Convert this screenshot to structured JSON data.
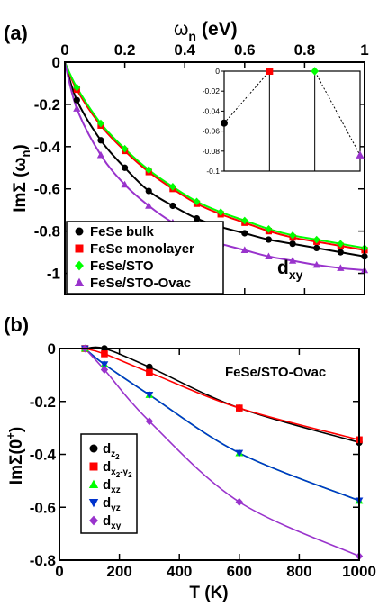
{
  "chart_data": [
    {
      "type": "line",
      "panel_label": "(a)",
      "xlabel": "ω",
      "xlabel_sub": "n",
      "xlabel_unit": "(eV)",
      "ylabel": "ImΣ (ω",
      "ylabel_sub": "n",
      "ylabel_close": ")",
      "xlim": [
        0,
        1
      ],
      "ylim": [
        -1.1,
        0
      ],
      "xticks": [
        0,
        0.2,
        0.4,
        0.6,
        0.8,
        1
      ],
      "xtick_labels": [
        "0",
        "0.2",
        "0.4",
        "0.6",
        "0.8",
        "1"
      ],
      "yticks": [
        0,
        -0.2,
        -0.4,
        -0.6,
        -0.8,
        -1
      ],
      "ytick_labels": [
        "0",
        "-0.2",
        "-0.4",
        "-0.6",
        "-0.8",
        "-1"
      ],
      "annotation": "d",
      "annotation_sub": "xy",
      "legend_position": "bottom-left",
      "series": [
        {
          "name": "FeSe bulk",
          "color": "#000000",
          "marker": "circle",
          "x": [
            0.04,
            0.12,
            0.2,
            0.28,
            0.36,
            0.44,
            0.52,
            0.6,
            0.68,
            0.76,
            0.84,
            0.92,
            1.0
          ],
          "y": [
            -0.18,
            -0.37,
            -0.5,
            -0.61,
            -0.68,
            -0.74,
            -0.78,
            -0.81,
            -0.84,
            -0.86,
            -0.88,
            -0.9,
            -0.92
          ]
        },
        {
          "name": "FeSe monolayer",
          "color": "#ff0000",
          "marker": "square",
          "x": [
            0.04,
            0.12,
            0.2,
            0.28,
            0.36,
            0.44,
            0.52,
            0.6,
            0.68,
            0.76,
            0.84,
            0.92,
            1.0
          ],
          "y": [
            -0.13,
            -0.3,
            -0.42,
            -0.52,
            -0.6,
            -0.67,
            -0.72,
            -0.76,
            -0.8,
            -0.83,
            -0.85,
            -0.87,
            -0.89
          ]
        },
        {
          "name": "FeSe/STO",
          "color": "#00ff00",
          "marker": "diamond",
          "x": [
            0.04,
            0.12,
            0.2,
            0.28,
            0.36,
            0.44,
            0.52,
            0.6,
            0.68,
            0.76,
            0.84,
            0.92,
            1.0
          ],
          "y": [
            -0.12,
            -0.29,
            -0.41,
            -0.51,
            -0.59,
            -0.66,
            -0.71,
            -0.75,
            -0.79,
            -0.82,
            -0.84,
            -0.86,
            -0.88
          ]
        },
        {
          "name": "FeSe/STO-Ovac",
          "color": "#9933cc",
          "marker": "triangle-up",
          "x": [
            0.04,
            0.12,
            0.2,
            0.28,
            0.36,
            0.44,
            0.52,
            0.6,
            0.68,
            0.76,
            0.84,
            0.92,
            1.0
          ],
          "y": [
            -0.22,
            -0.44,
            -0.58,
            -0.68,
            -0.76,
            -0.82,
            -0.86,
            -0.89,
            -0.92,
            -0.94,
            -0.96,
            -0.975,
            -0.985
          ]
        }
      ],
      "inset": {
        "type": "scatter",
        "ylim": [
          -0.1,
          0
        ],
        "yticks": [
          0,
          -0.02,
          -0.04,
          -0.06,
          -0.08,
          -0.1
        ],
        "ytick_labels": [
          "0",
          "-0.02",
          "-0.04",
          "-0.06",
          "-0.08",
          "-0.1"
        ],
        "points": [
          {
            "series": "FeSe bulk",
            "value": -0.052
          },
          {
            "series": "FeSe monolayer",
            "value": 0.0
          },
          {
            "series": "FeSe/STO",
            "value": 0.0
          },
          {
            "series": "FeSe/STO-Ovac",
            "value": -0.084
          }
        ]
      }
    },
    {
      "type": "line",
      "panel_label": "(b)",
      "title": "FeSe/STO-Ovac",
      "xlabel": "T (K)",
      "ylabel": "ImΣ(0",
      "ylabel_sup": "+",
      "ylabel_close": ")",
      "xlim": [
        0,
        1000
      ],
      "ylim": [
        -0.8,
        0
      ],
      "xticks": [
        0,
        200,
        400,
        600,
        800,
        1000
      ],
      "xtick_labels": [
        "0",
        "200",
        "400",
        "600",
        "800",
        "1000"
      ],
      "yticks": [
        0,
        -0.2,
        -0.4,
        -0.6,
        -0.8
      ],
      "ytick_labels": [
        "0",
        "-0.2",
        "-0.4",
        "-0.6",
        "-0.8"
      ],
      "legend_position": "bottom-left",
      "series": [
        {
          "name": "d",
          "sub": "z",
          "sup": "2",
          "color": "#000000",
          "marker": "circle",
          "x": [
            85,
            150,
            300,
            600,
            1000
          ],
          "y": [
            0,
            0,
            -0.07,
            -0.225,
            -0.355
          ]
        },
        {
          "name": "d",
          "sub": "x",
          "sup": "2",
          "sub2": "-y",
          "sup2": "2",
          "color": "#ff0000",
          "marker": "square",
          "x": [
            85,
            150,
            300,
            600,
            1000
          ],
          "y": [
            0,
            -0.02,
            -0.09,
            -0.225,
            -0.345
          ]
        },
        {
          "name": "d",
          "sub": "xz",
          "color": "#00ff00",
          "marker": "triangle-up",
          "x": [
            85,
            150,
            300,
            600,
            1000
          ],
          "y": [
            0,
            -0.06,
            -0.175,
            -0.395,
            -0.575
          ]
        },
        {
          "name": "d",
          "sub": "yz",
          "color": "#0033cc",
          "marker": "triangle-down",
          "x": [
            85,
            150,
            300,
            600,
            1000
          ],
          "y": [
            0,
            -0.06,
            -0.175,
            -0.395,
            -0.575
          ]
        },
        {
          "name": "d",
          "sub": "xy",
          "color": "#9933cc",
          "marker": "diamond",
          "x": [
            85,
            150,
            300,
            600,
            1000
          ],
          "y": [
            0,
            -0.08,
            -0.275,
            -0.58,
            -0.785
          ]
        }
      ]
    }
  ]
}
